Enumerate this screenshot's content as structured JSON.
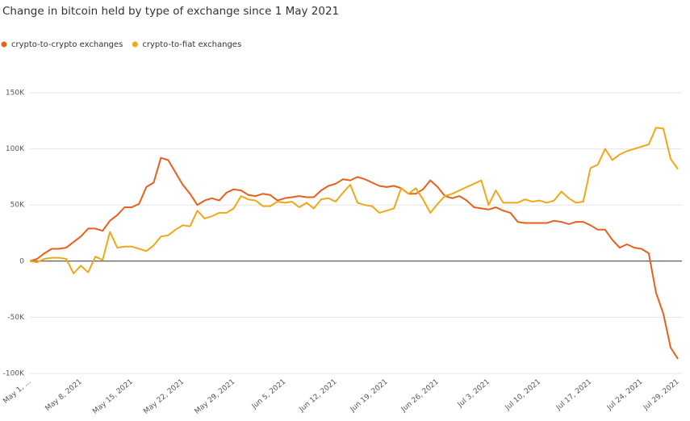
{
  "chart_data": {
    "type": "line",
    "title": "Change in bitcoin held by type of exchange since 1 May 2021",
    "categories": [
      "May 1, ...",
      null,
      null,
      null,
      null,
      null,
      null,
      "May 8, 2021",
      null,
      null,
      null,
      null,
      null,
      null,
      "May 15, 2021",
      null,
      null,
      null,
      null,
      null,
      null,
      "May 22, 2021",
      null,
      null,
      null,
      null,
      null,
      null,
      "May 29, 2021",
      null,
      null,
      null,
      null,
      null,
      null,
      "Jun 5, 2021",
      null,
      null,
      null,
      null,
      null,
      null,
      "Jun 12, 2021",
      null,
      null,
      null,
      null,
      null,
      null,
      "Jun 19, 2021",
      null,
      null,
      null,
      null,
      null,
      null,
      "Jun 26, 2021",
      null,
      null,
      null,
      null,
      null,
      null,
      "Jul 3, 2021",
      null,
      null,
      null,
      null,
      null,
      null,
      "Jul 10, 2021",
      null,
      null,
      null,
      null,
      null,
      null,
      "Jul 17, 2021",
      null,
      null,
      null,
      null,
      null,
      null,
      "Jul 24, 2021",
      null,
      null,
      null,
      null,
      "Jul 29, 2021"
    ],
    "series": [
      {
        "name": "crypto-to-crypto exchanges",
        "color": "#e8601c",
        "values": [
          0,
          2000,
          7000,
          11000,
          11000,
          12000,
          17000,
          22000,
          29000,
          29000,
          27000,
          36000,
          41000,
          48000,
          48000,
          51000,
          66000,
          70000,
          92000,
          90000,
          79000,
          68000,
          60000,
          50000,
          54000,
          56000,
          54000,
          61000,
          64000,
          63000,
          59000,
          58000,
          60000,
          59000,
          54000,
          56000,
          57000,
          58000,
          57000,
          57000,
          63000,
          67000,
          69000,
          73000,
          72000,
          75000,
          73000,
          70000,
          67000,
          66000,
          67000,
          65000,
          60000,
          60000,
          64000,
          72000,
          66000,
          58000,
          56000,
          58000,
          54000,
          48000,
          47000,
          46000,
          48000,
          45000,
          43000,
          35000,
          34000,
          34000,
          34000,
          34000,
          36000,
          35000,
          33000,
          35000,
          35000,
          32000,
          28000,
          28000,
          19000,
          12000,
          15000,
          12000,
          11000,
          7000,
          -28000,
          -47000,
          -77000,
          -87000
        ]
      },
      {
        "name": "crypto-to-fiat exchanges",
        "color": "#f0a818",
        "values": [
          0,
          -1000,
          2000,
          3000,
          3000,
          2000,
          -11000,
          -4000,
          -10000,
          4000,
          1000,
          26000,
          12000,
          13000,
          13000,
          11000,
          9000,
          14000,
          22000,
          23000,
          28000,
          32000,
          31000,
          45000,
          38000,
          40000,
          43000,
          43000,
          47000,
          58000,
          55000,
          54000,
          49000,
          49000,
          53000,
          52000,
          53000,
          48000,
          52000,
          47000,
          55000,
          56000,
          53000,
          61000,
          68000,
          52000,
          50000,
          49000,
          43000,
          45000,
          47000,
          65000,
          60000,
          65000,
          55000,
          43000,
          51000,
          58000,
          60000,
          63000,
          66000,
          69000,
          72000,
          50000,
          63000,
          52000,
          52000,
          52000,
          55000,
          53000,
          54000,
          52000,
          54000,
          62000,
          56000,
          52000,
          53000,
          83000,
          86000,
          100000,
          90000,
          95000,
          98000,
          100000,
          102000,
          104000,
          119000,
          118000,
          91000,
          82000
        ]
      }
    ],
    "ylim": [
      -100000,
      150000
    ],
    "yticks": [
      {
        "value": -100000,
        "label": "-100K"
      },
      {
        "value": -50000,
        "label": "-50K"
      },
      0,
      {
        "value": 50000,
        "label": "50K"
      },
      {
        "value": 100000,
        "label": "100K"
      },
      {
        "value": 150000,
        "label": "150K"
      }
    ],
    "grid": true
  }
}
